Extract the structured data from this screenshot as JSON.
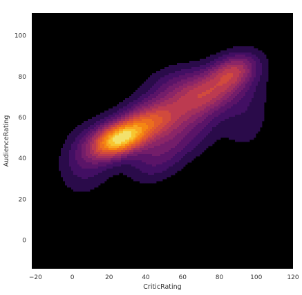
{
  "chart_data": {
    "type": "density",
    "subtype": "2d-kde-filled-contour",
    "xlabel": "CriticRating",
    "ylabel": "AudienceRating",
    "xlim": [
      -22,
      120
    ],
    "ylim": [
      -14,
      111
    ],
    "xticks": [
      -20,
      0,
      20,
      40,
      60,
      80,
      100,
      120
    ],
    "yticks": [
      0,
      20,
      40,
      60,
      80,
      100
    ],
    "xtick_labels": [
      "−20",
      "0",
      "20",
      "40",
      "60",
      "80",
      "100",
      "120"
    ],
    "ytick_labels": [
      "0",
      "20",
      "40",
      "60",
      "80",
      "100"
    ],
    "colormap": "inferno",
    "background": "#000000",
    "contour_colors": [
      "#2a0b4a",
      "#420f63",
      "#5a1468",
      "#731d6a",
      "#8b2567",
      "#a3305c",
      "#bc3a50",
      "#d14a3d",
      "#e15a2c",
      "#ec6e1e",
      "#f58612",
      "#f9a520",
      "#f8c62f",
      "#f3e16b"
    ],
    "density_clusters": [
      {
        "x": 25,
        "y": 49,
        "sx": 10,
        "sy": 6,
        "rho": 0.35,
        "weight": 1.0
      },
      {
        "x": 42,
        "y": 58,
        "sx": 12,
        "sy": 7,
        "rho": 0.3,
        "weight": 0.62
      },
      {
        "x": 72,
        "y": 71,
        "sx": 14,
        "sy": 8,
        "rho": 0.4,
        "weight": 0.55
      },
      {
        "x": 88,
        "y": 83,
        "sx": 9,
        "sy": 6,
        "rho": 0.3,
        "weight": 0.45
      },
      {
        "x": 8,
        "y": 40,
        "sx": 10,
        "sy": 11,
        "rho": 0.2,
        "weight": 0.22
      },
      {
        "x": 45,
        "y": 40,
        "sx": 10,
        "sy": 8,
        "rho": 0.3,
        "weight": 0.22
      },
      {
        "x": 55,
        "y": 76,
        "sx": 12,
        "sy": 7,
        "rho": 0.3,
        "weight": 0.18
      },
      {
        "x": 95,
        "y": 60,
        "sx": 9,
        "sy": 12,
        "rho": 0.2,
        "weight": 0.12
      },
      {
        "x": 62,
        "y": 52,
        "sx": 12,
        "sy": 9,
        "rho": 0.4,
        "weight": 0.22
      }
    ]
  }
}
